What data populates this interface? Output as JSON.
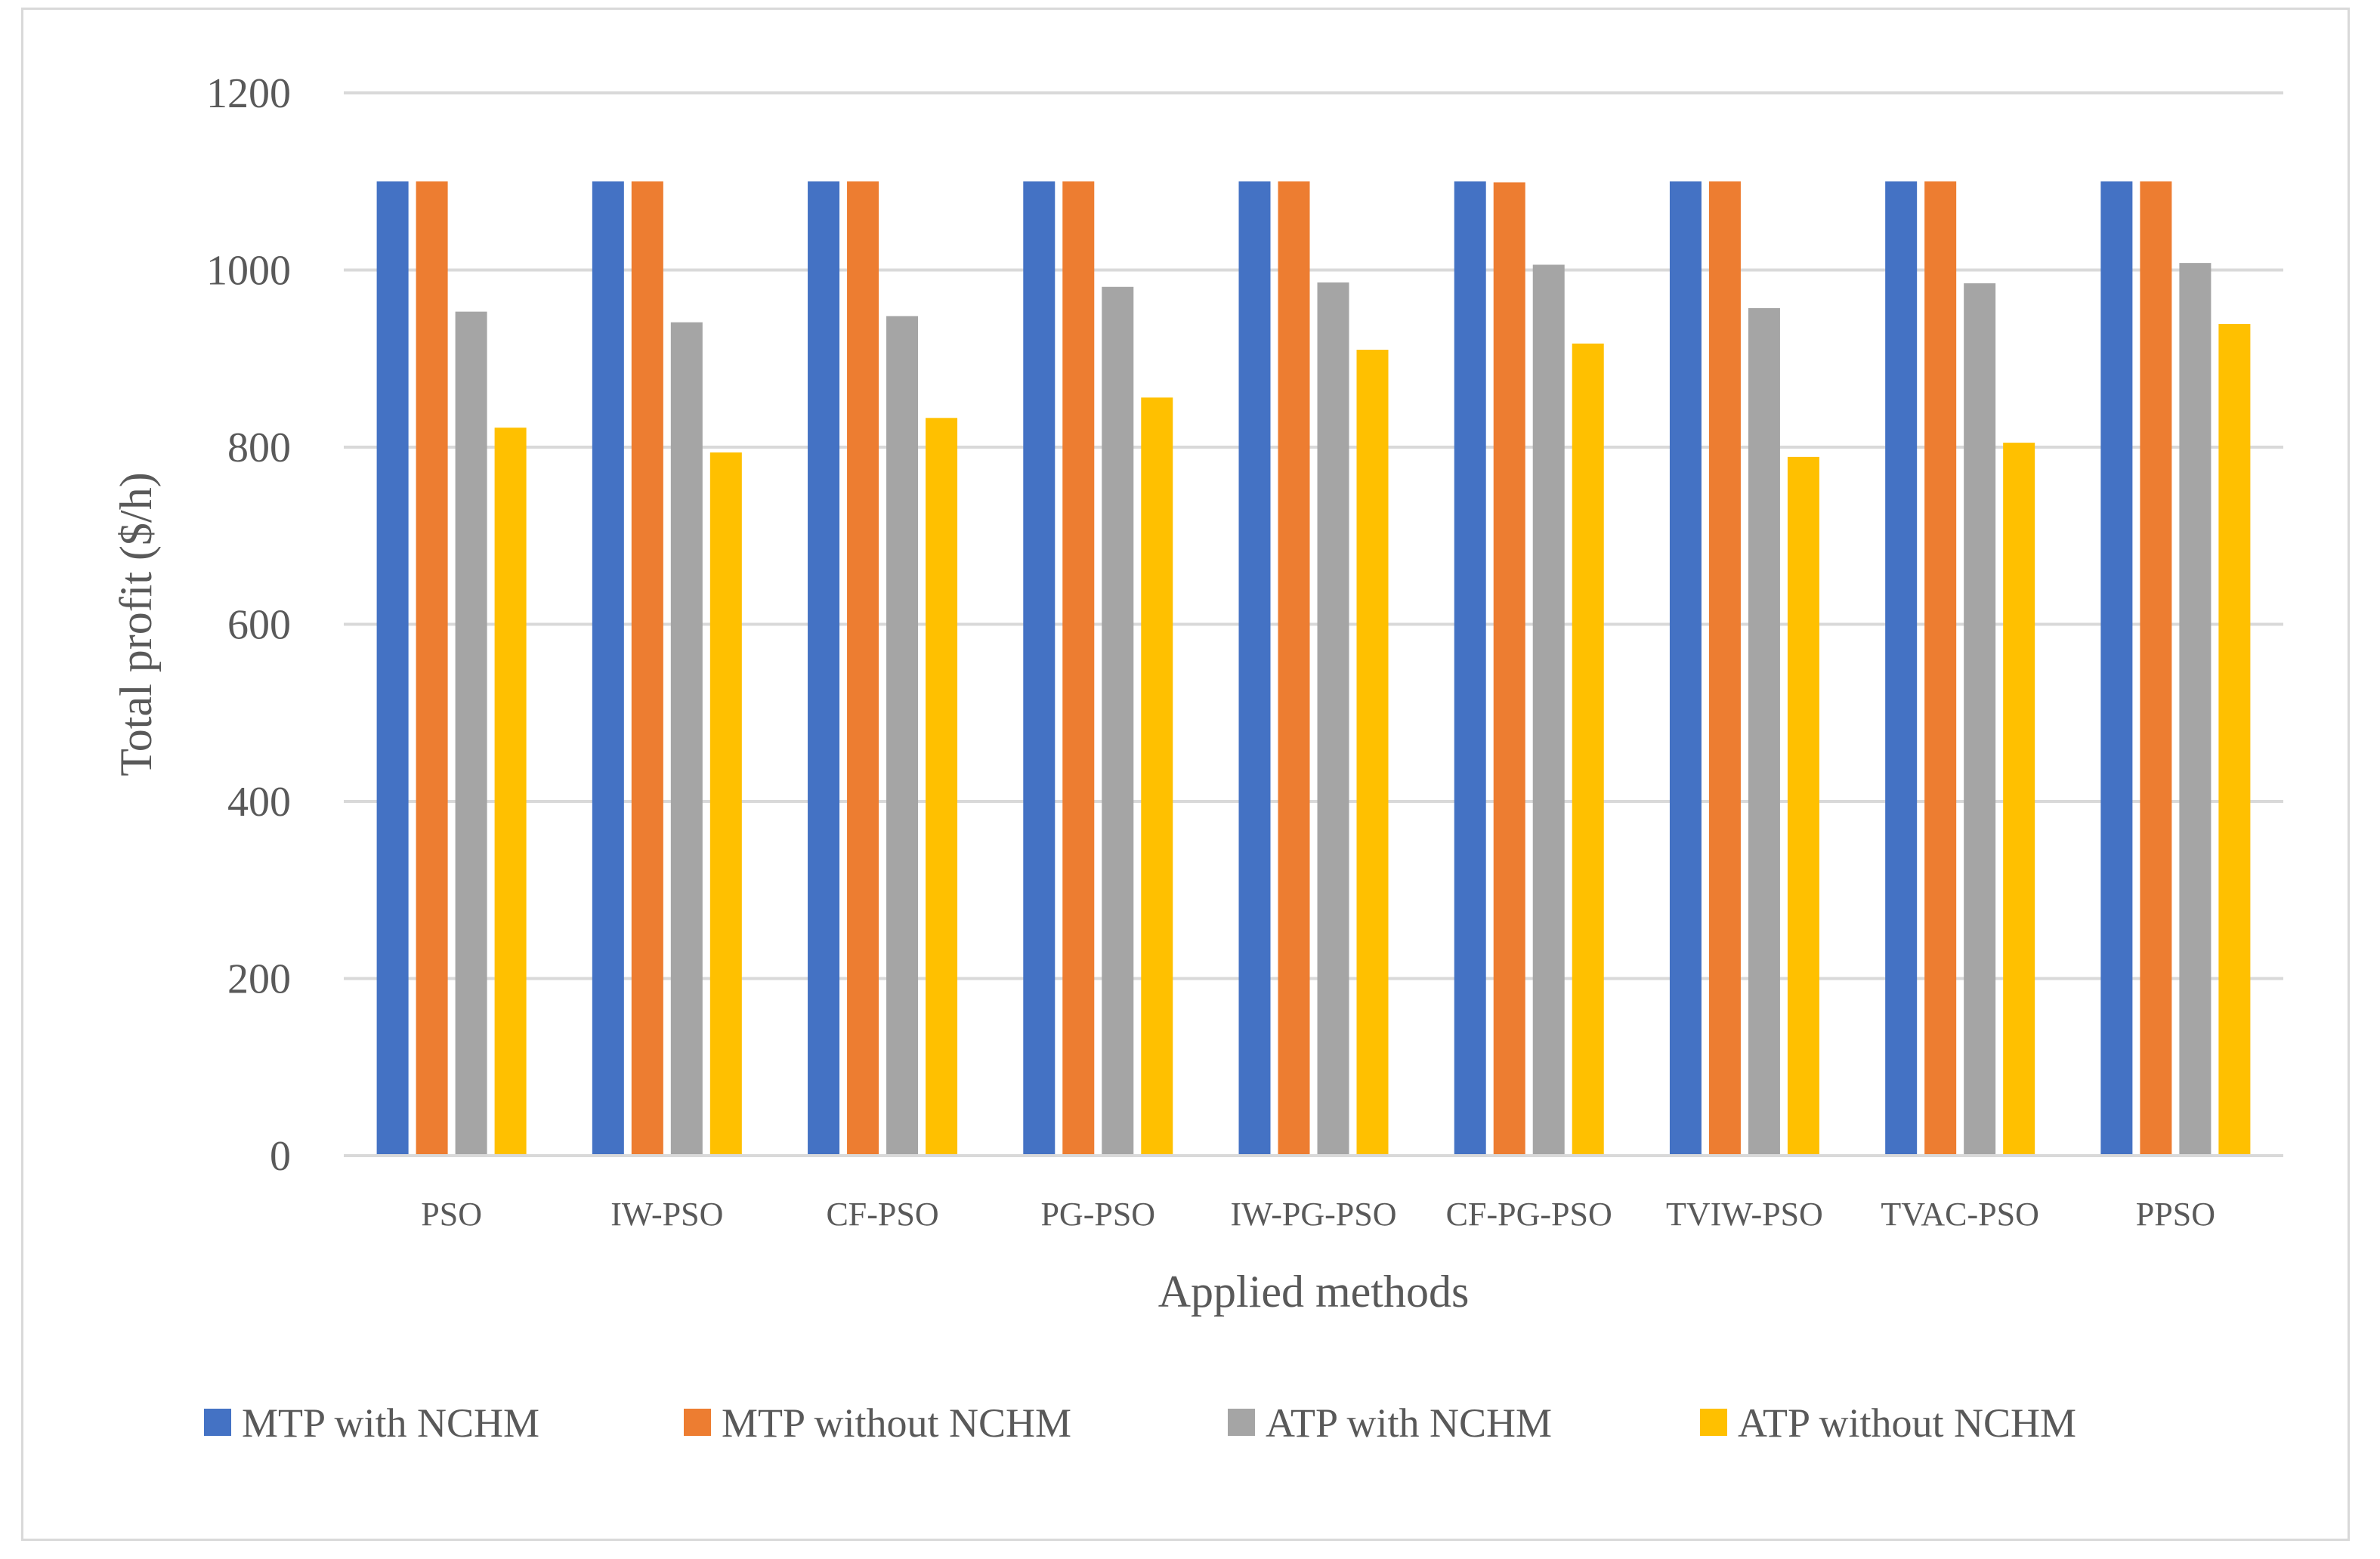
{
  "chart_data": {
    "type": "bar",
    "title": "",
    "xlabel": "Applied methods",
    "ylabel": "Total profit ($/h)",
    "ylim": [
      0,
      1200
    ],
    "yticks": [
      0,
      200,
      400,
      600,
      800,
      1000,
      1200
    ],
    "grid": true,
    "legend_position": "bottom",
    "categories": [
      "PSO",
      "IW-PSO",
      "CF-PSO",
      "PG-PSO",
      "IW-PG-PSO",
      "CF-PG-PSO",
      "TVIW-PSO",
      "TVAC-PSO",
      "PPSO"
    ],
    "series": [
      {
        "name": "MTP with NCHM",
        "color": "#4472c4",
        "values": [
          1100,
          1100,
          1100,
          1100,
          1100,
          1100,
          1100,
          1100,
          1100
        ]
      },
      {
        "name": "MTP without NCHM",
        "color": "#ed7d31",
        "values": [
          1100,
          1100,
          1100,
          1100,
          1100,
          1099,
          1100,
          1100,
          1100
        ]
      },
      {
        "name": "ATP with NCHM",
        "color": "#a5a5a5",
        "values": [
          953,
          941,
          948,
          981,
          986,
          1006,
          957,
          985,
          1008
        ]
      },
      {
        "name": "ATP without NCHM",
        "color": "#ffc000",
        "values": [
          822,
          794,
          833,
          856,
          910,
          917,
          789,
          805,
          939
        ]
      }
    ]
  }
}
